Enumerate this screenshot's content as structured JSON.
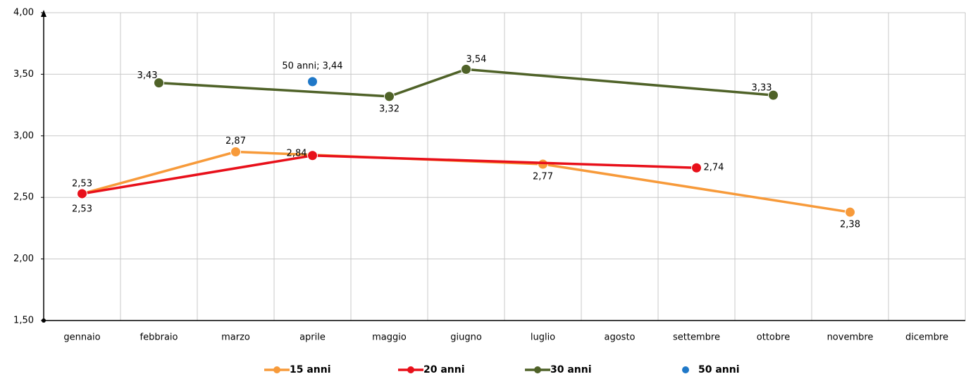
{
  "chart_data": {
    "type": "line",
    "categories": [
      "gennaio",
      "febbraio",
      "marzo",
      "aprile",
      "maggio",
      "giugno",
      "luglio",
      "agosto",
      "settembre",
      "ottobre",
      "novembre",
      "dicembre"
    ],
    "ylim": [
      1.5,
      4.0
    ],
    "yticks": [
      {
        "value": 1.5,
        "label": "1,50"
      },
      {
        "value": 2.0,
        "label": "2,00"
      },
      {
        "value": 2.5,
        "label": "2,50"
      },
      {
        "value": 3.0,
        "label": "3,00"
      },
      {
        "value": 3.5,
        "label": "3,50"
      },
      {
        "value": 4.0,
        "label": "4,00"
      }
    ],
    "grid": true,
    "legend": "bottom",
    "series": [
      {
        "name": "15 anni",
        "color": "#f79a3a",
        "line": true,
        "x": [
          "gennaio",
          "marzo",
          "luglio",
          "novembre"
        ],
        "values": [
          2.53,
          2.87,
          2.77,
          2.38
        ],
        "value_labels": [
          "2,53",
          "2,87",
          "2,77",
          "2,38"
        ]
      },
      {
        "name": "20 anni",
        "color": "#e8101a",
        "line": true,
        "x": [
          "gennaio",
          "aprile",
          "settembre"
        ],
        "values": [
          2.53,
          2.84,
          2.74
        ],
        "value_labels": [
          "2,53",
          "2,84",
          "2,74"
        ]
      },
      {
        "name": "30 anni",
        "color": "#4f6228",
        "line": true,
        "x": [
          "febbraio",
          "maggio",
          "giugno",
          "ottobre"
        ],
        "values": [
          3.43,
          3.32,
          3.54,
          3.33
        ],
        "value_labels": [
          "3,43",
          "3,32",
          "3,54",
          "3,33"
        ]
      },
      {
        "name": "50 anni",
        "color": "#1f78c8",
        "line": false,
        "x": [
          "aprile"
        ],
        "values": [
          3.44
        ],
        "value_labels": [
          "50 anni; 3,44"
        ]
      }
    ]
  }
}
